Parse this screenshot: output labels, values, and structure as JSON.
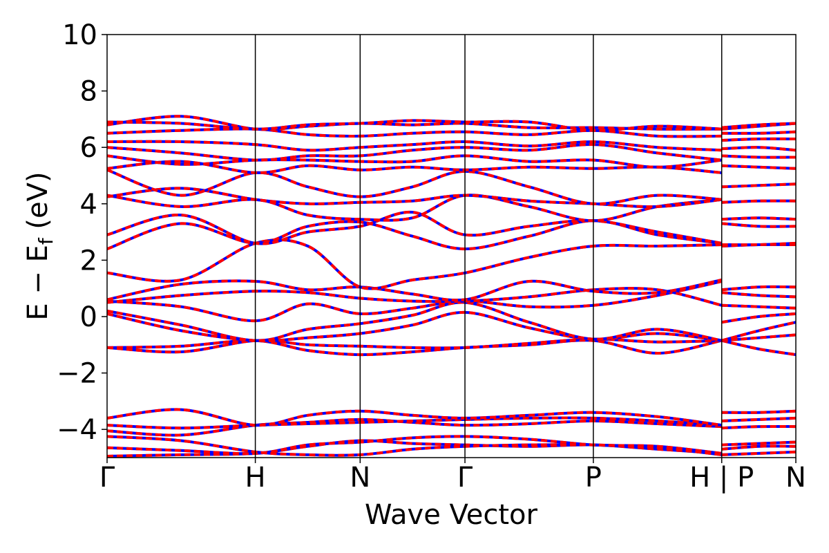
{
  "chart_data": {
    "type": "line",
    "title": "",
    "xlabel": "Wave Vector",
    "ylabel_main": "E − E",
    "ylabel_sub": "f",
    "ylabel_unit": " (eV)",
    "ylim": [
      -5,
      10
    ],
    "yticks": [
      10,
      8,
      6,
      4,
      2,
      0,
      -2,
      -4
    ],
    "ytick_labels": [
      "10",
      "8",
      "6",
      "4",
      "2",
      "0",
      "−2",
      "−4"
    ],
    "grid": false,
    "legend": "none",
    "colors": {
      "spin_up": "#ff0000",
      "spin_down": "#0000ff",
      "axes": "#000000"
    },
    "high_symmetry_points": [
      {
        "label": "Γ",
        "k": 0.0
      },
      {
        "label": "H",
        "k": 1.0
      },
      {
        "label": "N",
        "k": 1.707
      },
      {
        "label": "Γ",
        "k": 2.414
      },
      {
        "label": "P",
        "k": 3.28
      },
      {
        "label": "H",
        "k": 4.146
      },
      {
        "label": "P",
        "k": 4.146
      },
      {
        "label": "N",
        "k": 4.646
      }
    ],
    "symmetry_tick_text": [
      "Γ",
      "H",
      "N",
      "Γ",
      "P",
      "H | P",
      "N"
    ],
    "bands": [
      {
        "name": "",
        "kx": [
          0.0,
          0.5,
          1.0,
          1.354,
          1.707,
          2.06,
          2.414,
          2.847,
          3.28,
          3.713,
          4.146,
          4.146,
          4.396,
          4.646
        ],
        "E": [
          -4.95,
          -4.9,
          -4.85,
          -4.6,
          -4.4,
          -4.5,
          -4.55,
          -4.6,
          -4.55,
          -4.7,
          -4.85,
          -4.55,
          -4.5,
          -4.45
        ]
      },
      {
        "name": "",
        "kx": [
          0.0,
          0.5,
          1.0,
          1.354,
          1.707,
          2.06,
          2.414,
          2.847,
          3.28,
          3.713,
          4.146,
          4.146,
          4.396,
          4.646
        ],
        "E": [
          -4.65,
          -4.75,
          -4.85,
          -4.55,
          -4.45,
          -4.3,
          -4.25,
          -4.35,
          -4.55,
          -4.6,
          -4.85,
          -4.7,
          -4.6,
          -4.6
        ]
      },
      {
        "name": "",
        "kx": [
          0.0,
          0.5,
          1.0,
          1.354,
          1.707,
          2.06,
          2.414,
          2.847,
          3.28,
          3.713,
          4.146,
          4.146,
          4.396,
          4.646
        ],
        "E": [
          -4.25,
          -4.4,
          -4.8,
          -4.9,
          -4.9,
          -4.7,
          -4.6,
          -4.55,
          -4.55,
          -4.65,
          -4.9,
          -4.9,
          -4.85,
          -4.8
        ]
      },
      {
        "name": "",
        "kx": [
          0.0,
          0.5,
          1.0,
          1.354,
          1.707,
          2.06,
          2.414,
          2.847,
          3.28,
          3.713,
          4.146,
          4.146,
          4.396,
          4.646
        ],
        "E": [
          -4.05,
          -4.2,
          -3.85,
          -3.75,
          -3.65,
          -3.75,
          -3.85,
          -3.8,
          -3.7,
          -3.8,
          -3.9,
          -3.95,
          -3.9,
          -3.9
        ]
      },
      {
        "name": "",
        "kx": [
          0.0,
          0.5,
          1.0,
          1.354,
          1.707,
          2.06,
          2.414,
          2.847,
          3.28,
          3.713,
          4.146,
          4.146,
          4.396,
          4.646
        ],
        "E": [
          -3.85,
          -3.95,
          -3.85,
          -3.8,
          -3.75,
          -3.7,
          -3.65,
          -3.6,
          -3.6,
          -3.7,
          -3.85,
          -3.7,
          -3.65,
          -3.6
        ]
      },
      {
        "name": "",
        "kx": [
          0.0,
          0.5,
          1.0,
          1.354,
          1.707,
          2.06,
          2.414,
          2.847,
          3.28,
          3.713,
          4.146,
          4.146,
          4.396,
          4.646
        ],
        "E": [
          -3.6,
          -3.3,
          -3.85,
          -3.5,
          -3.35,
          -3.5,
          -3.6,
          -3.5,
          -3.4,
          -3.55,
          -3.85,
          -3.4,
          -3.4,
          -3.35
        ]
      },
      {
        "name": "",
        "kx": [
          0.0,
          0.5,
          1.0,
          1.354,
          1.707,
          2.06,
          2.414,
          2.847,
          3.28,
          3.713,
          4.146,
          4.146,
          4.396,
          4.646
        ],
        "E": [
          -1.1,
          -1.05,
          -0.85,
          -1.2,
          -1.35,
          -1.25,
          -1.1,
          -1.0,
          -0.85,
          -1.3,
          -0.85,
          -0.85,
          -1.15,
          -1.35
        ]
      },
      {
        "name": "",
        "kx": [
          0.0,
          0.5,
          1.0,
          1.354,
          1.707,
          2.06,
          2.414,
          2.847,
          3.28,
          3.713,
          4.146,
          4.146,
          4.396,
          4.646
        ],
        "E": [
          -1.1,
          -1.25,
          -0.85,
          -1.0,
          -1.05,
          -1.1,
          -1.1,
          -0.95,
          -0.8,
          -0.9,
          -0.85,
          -0.85,
          -0.75,
          -0.65
        ]
      },
      {
        "name": "",
        "kx": [
          0.0,
          0.5,
          1.0,
          1.354,
          1.707,
          2.06,
          2.414,
          2.847,
          3.28,
          3.713,
          4.146,
          4.146,
          4.396,
          4.646
        ],
        "E": [
          0.1,
          -0.5,
          -0.85,
          -0.75,
          -0.6,
          -0.3,
          0.15,
          -0.4,
          -0.8,
          -0.6,
          -0.85,
          -0.85,
          -0.5,
          -0.2
        ]
      },
      {
        "name": "",
        "kx": [
          0.0,
          0.5,
          1.0,
          1.354,
          1.707,
          2.06,
          2.414,
          2.847,
          3.28,
          3.713,
          4.146,
          4.146,
          4.396,
          4.646
        ],
        "E": [
          0.2,
          -0.3,
          -0.85,
          -0.45,
          -0.25,
          0.05,
          0.5,
          -0.2,
          -0.8,
          -0.45,
          -0.85,
          -0.2,
          0.0,
          0.1
        ]
      },
      {
        "name": "",
        "kx": [
          0.0,
          0.5,
          1.0,
          1.354,
          1.707,
          2.06,
          2.414,
          2.847,
          3.28,
          3.713,
          4.146,
          4.146,
          4.396,
          4.646
        ],
        "E": [
          0.55,
          0.35,
          -0.15,
          0.45,
          0.1,
          0.3,
          0.55,
          0.35,
          0.4,
          0.75,
          1.25,
          0.4,
          0.35,
          0.3
        ]
      },
      {
        "name": "",
        "kx": [
          0.0,
          0.5,
          1.0,
          1.354,
          1.707,
          2.06,
          2.414,
          2.847,
          3.28,
          3.713,
          4.146,
          4.146,
          4.396,
          4.646
        ],
        "E": [
          0.5,
          0.75,
          0.9,
          0.85,
          0.65,
          0.55,
          0.55,
          0.7,
          0.95,
          0.95,
          0.4,
          0.85,
          0.75,
          0.7
        ]
      },
      {
        "name": "",
        "kx": [
          0.0,
          0.5,
          1.0,
          1.354,
          1.707,
          2.06,
          2.414,
          2.847,
          3.28,
          3.713,
          4.146,
          4.146,
          4.396,
          4.646
        ],
        "E": [
          0.6,
          1.15,
          1.25,
          0.95,
          1.05,
          0.8,
          0.6,
          1.25,
          0.9,
          0.85,
          1.3,
          0.95,
          1.05,
          1.05
        ]
      },
      {
        "name": "",
        "kx": [
          0.0,
          0.5,
          1.0,
          1.354,
          1.707,
          2.06,
          2.414,
          2.847,
          3.28,
          3.713,
          4.146,
          4.146,
          4.396,
          4.646
        ],
        "E": [
          1.55,
          1.3,
          2.6,
          2.5,
          1.05,
          1.3,
          1.55,
          2.1,
          2.5,
          2.5,
          2.55,
          2.5,
          2.55,
          2.55
        ]
      },
      {
        "name": "",
        "kx": [
          0.0,
          0.5,
          1.0,
          1.354,
          1.707,
          2.06,
          2.414,
          2.847,
          3.28,
          3.713,
          4.146,
          4.146,
          4.396,
          4.646
        ],
        "E": [
          2.4,
          3.3,
          2.6,
          3.2,
          3.35,
          2.85,
          2.4,
          2.85,
          3.4,
          2.9,
          2.6,
          2.55,
          2.55,
          2.6
        ]
      },
      {
        "name": "",
        "kx": [
          0.0,
          0.5,
          1.0,
          1.354,
          1.707,
          2.06,
          2.414,
          2.847,
          3.28,
          3.713,
          4.146,
          4.146,
          4.396,
          4.646
        ],
        "E": [
          2.9,
          3.6,
          2.6,
          3.0,
          3.2,
          3.7,
          2.9,
          3.2,
          3.4,
          3.0,
          2.6,
          3.3,
          3.2,
          3.2
        ]
      },
      {
        "name": "",
        "kx": [
          0.0,
          0.5,
          1.0,
          1.354,
          1.707,
          2.06,
          2.414,
          2.847,
          3.28,
          3.713,
          4.146,
          4.146,
          4.396,
          4.646
        ],
        "E": [
          4.3,
          3.9,
          4.15,
          3.6,
          3.45,
          3.5,
          4.3,
          3.9,
          3.4,
          3.9,
          4.15,
          3.45,
          3.5,
          3.45
        ]
      },
      {
        "name": "",
        "kx": [
          0.0,
          0.5,
          1.0,
          1.354,
          1.707,
          2.06,
          2.414,
          2.847,
          3.28,
          3.713,
          4.146,
          4.146,
          4.396,
          4.646
        ],
        "E": [
          4.25,
          4.55,
          4.15,
          4.0,
          4.05,
          4.1,
          4.3,
          4.1,
          4.0,
          3.9,
          4.15,
          4.05,
          4.1,
          4.1
        ]
      },
      {
        "name": "",
        "kx": [
          0.0,
          0.5,
          1.0,
          1.354,
          1.707,
          2.06,
          2.414,
          2.847,
          3.28,
          3.713,
          4.146,
          4.146,
          4.396,
          4.646
        ],
        "E": [
          5.2,
          4.3,
          5.1,
          4.6,
          4.25,
          4.6,
          5.15,
          4.6,
          4.0,
          4.3,
          4.15,
          4.6,
          4.65,
          4.7
        ]
      },
      {
        "name": "",
        "kx": [
          0.0,
          0.5,
          1.0,
          1.354,
          1.707,
          2.06,
          2.414,
          2.847,
          3.28,
          3.713,
          4.146,
          4.146,
          4.396,
          4.646
        ],
        "E": [
          5.25,
          5.5,
          5.1,
          5.35,
          5.2,
          5.3,
          5.2,
          5.3,
          5.25,
          5.3,
          5.1,
          5.35,
          5.3,
          5.25
        ]
      },
      {
        "name": "",
        "kx": [
          0.0,
          0.5,
          1.0,
          1.354,
          1.707,
          2.06,
          2.414,
          2.847,
          3.28,
          3.713,
          4.146,
          4.146,
          4.396,
          4.646
        ],
        "E": [
          5.7,
          5.4,
          5.55,
          5.55,
          5.5,
          5.5,
          5.7,
          5.5,
          5.55,
          5.3,
          5.55,
          5.7,
          5.65,
          5.65
        ]
      },
      {
        "name": "",
        "kx": [
          0.0,
          0.5,
          1.0,
          1.354,
          1.707,
          2.06,
          2.414,
          2.847,
          3.28,
          3.713,
          4.146,
          4.146,
          4.396,
          4.646
        ],
        "E": [
          6.0,
          5.8,
          5.55,
          5.7,
          5.7,
          5.9,
          6.0,
          5.9,
          6.1,
          5.8,
          5.55,
          5.95,
          6.0,
          5.9
        ]
      },
      {
        "name": "",
        "kx": [
          0.0,
          0.5,
          1.0,
          1.354,
          1.707,
          2.06,
          2.414,
          2.847,
          3.28,
          3.713,
          4.146,
          4.146,
          4.396,
          4.646
        ],
        "E": [
          6.2,
          6.2,
          6.1,
          5.9,
          6.0,
          6.1,
          6.2,
          6.05,
          6.2,
          6.0,
          5.9,
          6.25,
          6.3,
          6.3
        ]
      },
      {
        "name": "",
        "kx": [
          0.0,
          0.5,
          1.0,
          1.354,
          1.707,
          2.06,
          2.414,
          2.847,
          3.28,
          3.713,
          4.146,
          4.146,
          4.396,
          4.646
        ],
        "E": [
          6.5,
          6.6,
          6.65,
          6.45,
          6.4,
          6.5,
          6.55,
          6.45,
          6.6,
          6.4,
          6.4,
          6.5,
          6.5,
          6.55
        ]
      },
      {
        "name": "",
        "kx": [
          0.0,
          0.5,
          1.0,
          1.354,
          1.707,
          2.06,
          2.414,
          2.847,
          3.28,
          3.713,
          4.146,
          4.146,
          4.396,
          4.646
        ],
        "E": [
          6.8,
          7.1,
          6.65,
          6.75,
          6.85,
          6.8,
          6.85,
          6.7,
          6.7,
          6.65,
          6.65,
          6.65,
          6.75,
          6.85
        ]
      },
      {
        "name": "",
        "kx": [
          0.0,
          0.5,
          1.0,
          1.354,
          1.707,
          2.06,
          2.414,
          2.847,
          3.28,
          3.713,
          4.146,
          4.146,
          4.396,
          4.646
        ],
        "E": [
          6.9,
          6.85,
          6.65,
          6.8,
          6.85,
          6.95,
          6.9,
          6.9,
          6.6,
          6.75,
          6.65,
          6.7,
          6.8,
          6.85
        ]
      }
    ]
  }
}
